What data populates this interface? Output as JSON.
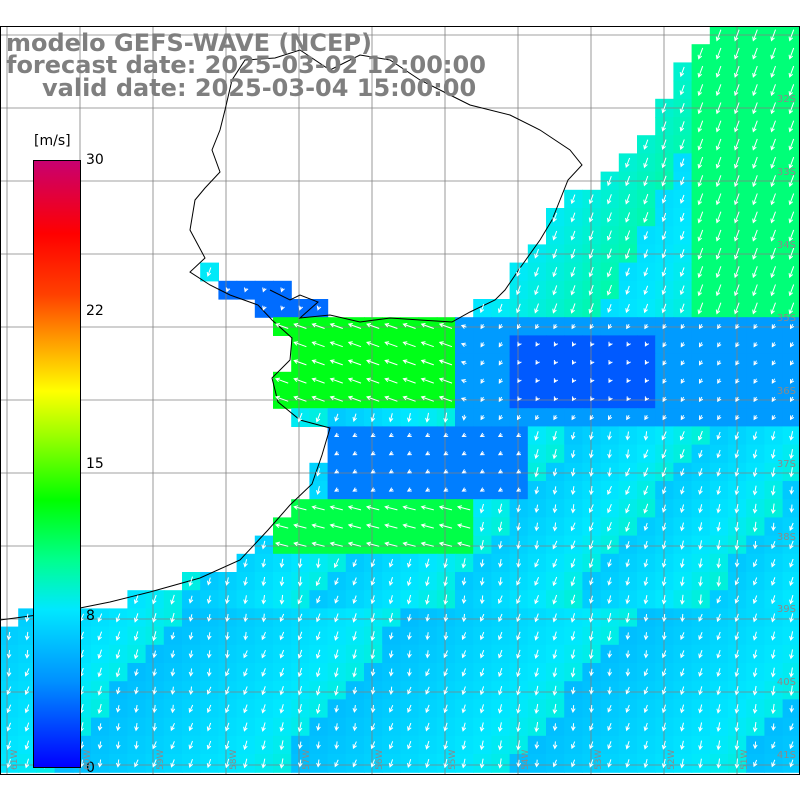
{
  "titles": {
    "line1": "modelo GEFS-WAVE (NCEP)",
    "line2": "forecast date: 2025-03-02 12:00:00",
    "line3": "valid date: 2025-03-04 15:00:00"
  },
  "colorbar": {
    "units": "[m/s]",
    "ticks": [
      "30",
      "22",
      "15",
      "8",
      "0"
    ],
    "tick_values": [
      30,
      22,
      15,
      8,
      0
    ],
    "min": 0,
    "max": 30
  },
  "axis_labels": {
    "latitudes": [
      "32S",
      "33S",
      "34S",
      "35S",
      "36S",
      "37S",
      "38S",
      "39S",
      "40S",
      "41S"
    ],
    "longitudes": [
      "61W",
      "60W",
      "59W",
      "58W",
      "57W",
      "56W",
      "55W",
      "54W",
      "53W",
      "52W",
      "51W"
    ]
  },
  "colors": {
    "land": "#ffffff",
    "coastline": "#000000",
    "grid": "#808080",
    "arrows": "#ffffff",
    "title_text": "#7f7f7f"
  }
}
